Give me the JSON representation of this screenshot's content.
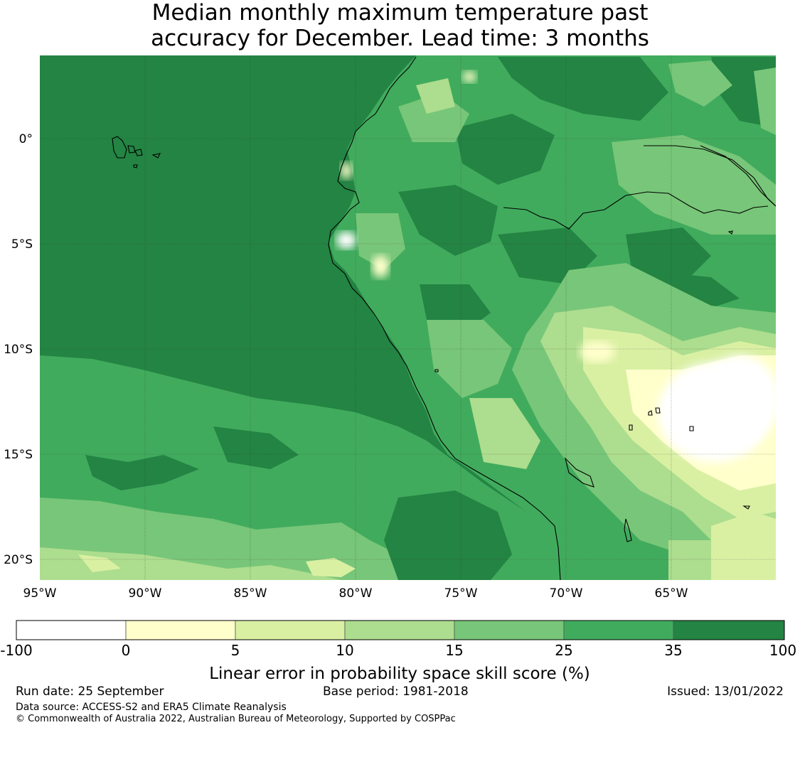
{
  "title_line1": "Median monthly maximum temperature past",
  "title_line2": "accuracy for December. Lead time: 3 months",
  "map": {
    "lon_ticks": [
      "95°W",
      "90°W",
      "85°W",
      "80°W",
      "75°W",
      "70°W",
      "65°W"
    ],
    "lat_ticks": [
      "0°",
      "5°S",
      "10°S",
      "15°S",
      "20°S"
    ]
  },
  "colorbar": {
    "title": "Linear error in probability space skill score (%)",
    "boundaries": [
      "-100",
      "0",
      "5",
      "10",
      "15",
      "25",
      "35",
      "100"
    ],
    "colors": [
      "#ffffff",
      "#ffffcc",
      "#d9f0a3",
      "#addd8e",
      "#78c679",
      "#41ab5d",
      "#238443"
    ]
  },
  "footer": {
    "run_date": "Run date: 25 September",
    "base_period": "Base period: 1981-2018",
    "issued": "Issued: 13/01/2022",
    "data_source": "Data source: ACCESS-S2 and ERA5 Climate Reanalysis",
    "copyright": "© Commonwealth of Australia 2022, Australian Bureau of Meteorology, Supported by COSPPac"
  }
}
